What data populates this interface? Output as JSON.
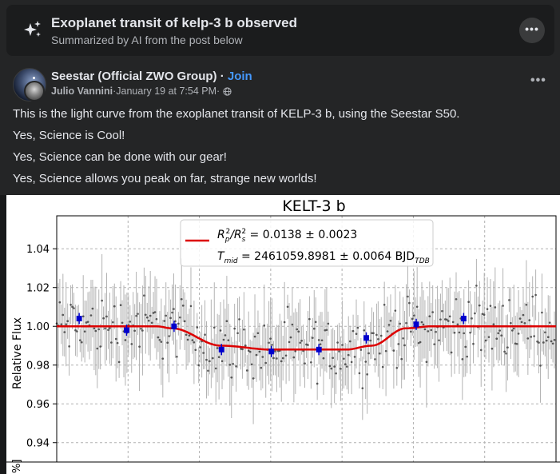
{
  "ai_summary": {
    "title": "Exoplanet transit of kelp-3 b observed",
    "subtitle": "Summarized by AI from the post below",
    "sparkle_icon": "sparkle-icon",
    "more_icon": "more-horizontal-icon"
  },
  "post": {
    "group_name": "Seestar (Official ZWO Group)",
    "separator": " · ",
    "join_label": "Join",
    "author": "Julio Vannini",
    "timestamp": "January 19 at 7:54 PM",
    "privacy_icon": "globe-icon",
    "more_icon": "more-horizontal-icon",
    "paragraphs": [
      "This is the light curve from the exoplanet transit of KELP-3 b, using the Seestar S50.",
      "Yes, Science is Cool!",
      "Yes, Science can be done with our gear!",
      "Yes, Science allows you peak on far, strange new worlds!"
    ]
  },
  "chart_data": {
    "type": "scatter",
    "title": "KELT-3 b",
    "ylabel": "Relative Flux",
    "ylim": [
      0.93,
      1.057
    ],
    "y_ticks": [
      "1.04",
      "1.02",
      "1.00",
      "0.98",
      "0.96",
      "0.94"
    ],
    "grid": true,
    "legend_placement": "top-center",
    "legend": {
      "line1_prefix": "R",
      "line1_p": "p",
      "line1_2a": "2",
      "line1_mid": "/R",
      "line1_s": "s",
      "line1_2b": "2",
      "line1_value": " = 0.0138 ± 0.0023",
      "line2_prefix": "T",
      "line2_sub": "mid",
      "line2_value": " = 2461059.8981 ± 0.0064 BJD",
      "line2_unit_sub": "TDB"
    },
    "bottom_panel_label": "%]",
    "series": [
      {
        "kind": "binned",
        "color": "#0000cc",
        "phase": [
          0.045,
          0.14,
          0.235,
          0.33,
          0.43,
          0.525,
          0.62,
          0.72,
          0.815
        ],
        "values": [
          1.004,
          0.998,
          1.0,
          0.988,
          0.987,
          0.988,
          0.994,
          1.001,
          1.004
        ]
      },
      {
        "kind": "model",
        "color": "#dd0000",
        "phase": [
          0.0,
          0.2,
          0.23,
          0.33,
          0.43,
          0.58,
          0.63,
          0.7,
          0.75,
          1.0
        ],
        "values": [
          1.0,
          1.0,
          0.999,
          0.99,
          0.988,
          0.988,
          0.99,
          0.999,
          1.0,
          1.0
        ]
      }
    ]
  }
}
